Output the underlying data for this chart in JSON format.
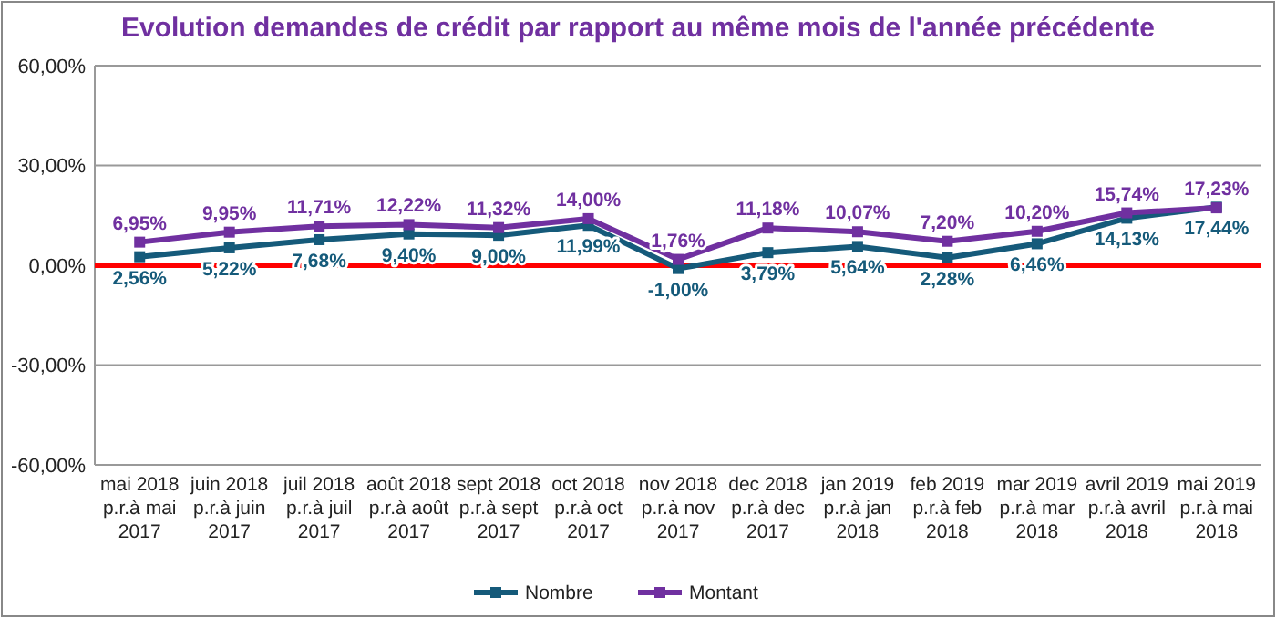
{
  "chart_data": {
    "type": "line",
    "title": "Evolution demandes de crédit par rapport au même mois de l'année précédente",
    "categories": [
      "mai 2018\np.r.à mai\n2017",
      "juin 2018\np.r.à juin\n2017",
      "juil 2018\np.r.à juil\n2017",
      "août 2018\np.r.à août\n2017",
      "sept 2018\np.r.à sept\n2017",
      "oct 2018\np.r.à oct\n2017",
      "nov 2018\np.r.à nov\n2017",
      "dec 2018\np.r.à dec\n2017",
      "jan 2019\np.r.à jan\n2018",
      "feb 2019\np.r.à feb\n2018",
      "mar 2019\np.r.à mar\n2018",
      "avril 2019\np.r.à avril\n2018",
      "mai 2019\np.r.à mai\n2018"
    ],
    "series": [
      {
        "name": "Nombre",
        "color": "#155a7a",
        "values": [
          2.56,
          5.22,
          7.68,
          9.4,
          9.0,
          11.99,
          -1.0,
          3.79,
          5.64,
          2.28,
          6.46,
          14.13,
          17.44
        ],
        "value_labels": [
          "2,56%",
          "5,22%",
          "7,68%",
          "9,40%",
          "9,00%",
          "11,99%",
          "-1,00%",
          "3,79%",
          "5,64%",
          "2,28%",
          "6,46%",
          "14,13%",
          "17,44%"
        ]
      },
      {
        "name": "Montant",
        "color": "#7030a0",
        "values": [
          6.95,
          9.95,
          11.71,
          12.22,
          11.32,
          14.0,
          1.76,
          11.18,
          10.07,
          7.2,
          10.2,
          15.74,
          17.23
        ],
        "value_labels": [
          "6,95%",
          "9,95%",
          "11,71%",
          "12,22%",
          "11,32%",
          "14,00%",
          "1,76%",
          "11,18%",
          "10,07%",
          "7,20%",
          "10,20%",
          "15,74%",
          "17,23%"
        ]
      }
    ],
    "ylim": [
      -60,
      60
    ],
    "yticks": [
      {
        "value": -60,
        "label": "-60,00%"
      },
      {
        "value": -30,
        "label": "-30,00%"
      },
      {
        "value": 0,
        "label": "0,00%"
      },
      {
        "value": 30,
        "label": "30,00%"
      },
      {
        "value": 60,
        "label": "60,00%"
      }
    ],
    "grid": "y",
    "marker": "square",
    "line_style": "solid",
    "legend": "bottom",
    "ref_lines": [
      {
        "axis": "y",
        "value": 0,
        "color": "#ff0000"
      }
    ]
  }
}
